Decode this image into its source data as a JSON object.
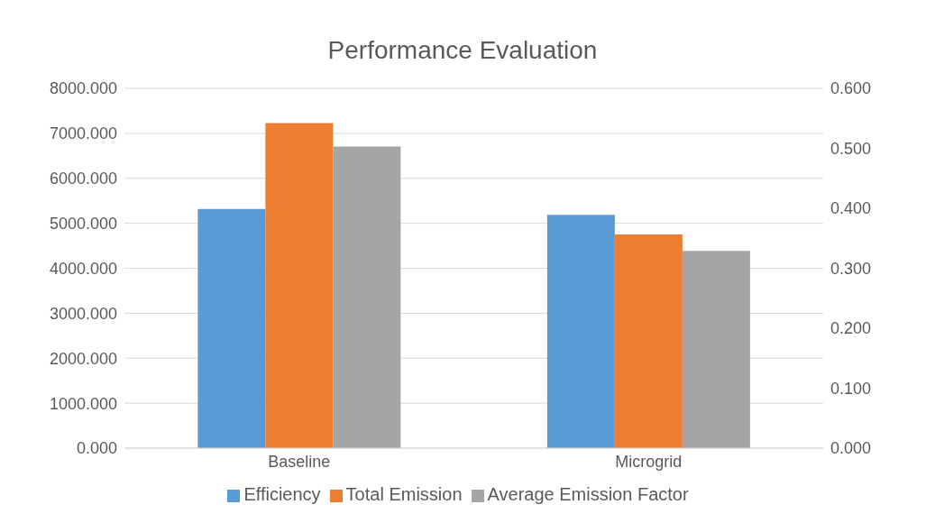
{
  "chart_data": {
    "type": "bar",
    "title": "Performance Evaluation",
    "categories": [
      "Baseline",
      "Microgrid"
    ],
    "series": [
      {
        "name": "Efficiency",
        "color": "#5b9bd5",
        "values": [
          0.399,
          0.389
        ],
        "axis": "y2"
      },
      {
        "name": "Total Emission",
        "color": "#ed7d31",
        "values": [
          7230,
          4750
        ]
      },
      {
        "name": "Average Emission Factor",
        "color": "#a5a5a5",
        "values": [
          0.503,
          0.329
        ],
        "axis": "y2"
      }
    ],
    "ylim": [
      0,
      8000
    ],
    "yticks": [
      {
        "value": 0,
        "label": "0.000"
      },
      {
        "value": 1000,
        "label": "1000.000"
      },
      {
        "value": 2000,
        "label": "2000.000"
      },
      {
        "value": 3000,
        "label": "3000.000"
      },
      {
        "value": 4000,
        "label": "4000.000"
      },
      {
        "value": 5000,
        "label": "5000.000"
      },
      {
        "value": 6000,
        "label": "6000.000"
      },
      {
        "value": 7000,
        "label": "7000.000"
      },
      {
        "value": 8000,
        "label": "8000.000"
      }
    ],
    "y2lim": [
      0,
      0.6
    ],
    "y2ticks": [
      {
        "value": 0,
        "label": "0.000"
      },
      {
        "value": 0.1,
        "label": "0.100"
      },
      {
        "value": 0.2,
        "label": "0.200"
      },
      {
        "value": 0.3,
        "label": "0.300"
      },
      {
        "value": 0.4,
        "label": "0.400"
      },
      {
        "value": 0.5,
        "label": "0.500"
      },
      {
        "value": 0.6,
        "label": "0.600"
      }
    ],
    "grid": "y",
    "legend": "bottom"
  }
}
